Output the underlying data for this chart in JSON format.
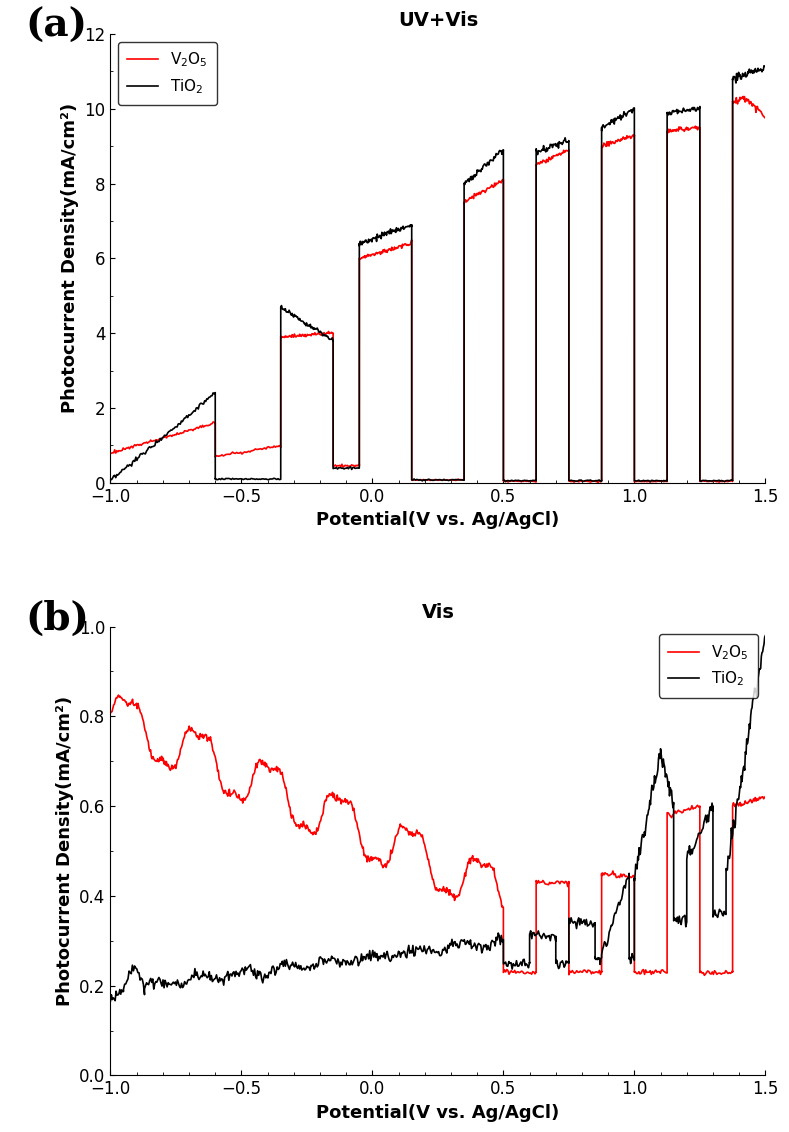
{
  "fig_width": 7.89,
  "fig_height": 11.32,
  "background_color": "#ffffff",
  "panel_a": {
    "title": "UV+Vis",
    "xlabel": "Potential(V vs. Ag/AgCl)",
    "ylabel": "Photocurrent Density(mA/cm²)",
    "xlim": [
      -1.0,
      1.5
    ],
    "ylim": [
      0,
      12
    ],
    "yticks": [
      0,
      2,
      4,
      6,
      8,
      10,
      12
    ],
    "xticks": [
      -1.0,
      -0.5,
      0.0,
      0.5,
      1.0,
      1.5
    ],
    "label_fontsize": 13,
    "tick_fontsize": 12,
    "title_fontsize": 14,
    "line_width": 1.2,
    "v2o5_color": "#ff0000",
    "tio2_color": "#000000",
    "legend_labels": [
      "V₂O₅",
      "TiO₂"
    ]
  },
  "panel_b": {
    "title": "Vis",
    "xlabel": "Potential(V vs. Ag/AgCl)",
    "ylabel": "Photocurrent Density(mA/cm²)",
    "xlim": [
      -1.0,
      1.5
    ],
    "ylim": [
      0.0,
      1.0
    ],
    "yticks": [
      0.0,
      0.2,
      0.4,
      0.6,
      0.8,
      1.0
    ],
    "xticks": [
      -1.0,
      -0.5,
      0.0,
      0.5,
      1.0,
      1.5
    ],
    "label_fontsize": 13,
    "tick_fontsize": 12,
    "title_fontsize": 14,
    "line_width": 1.2,
    "v2o5_color": "#ff0000",
    "tio2_color": "#000000",
    "legend_labels": [
      "V₂O₅",
      "TiO₂"
    ]
  }
}
